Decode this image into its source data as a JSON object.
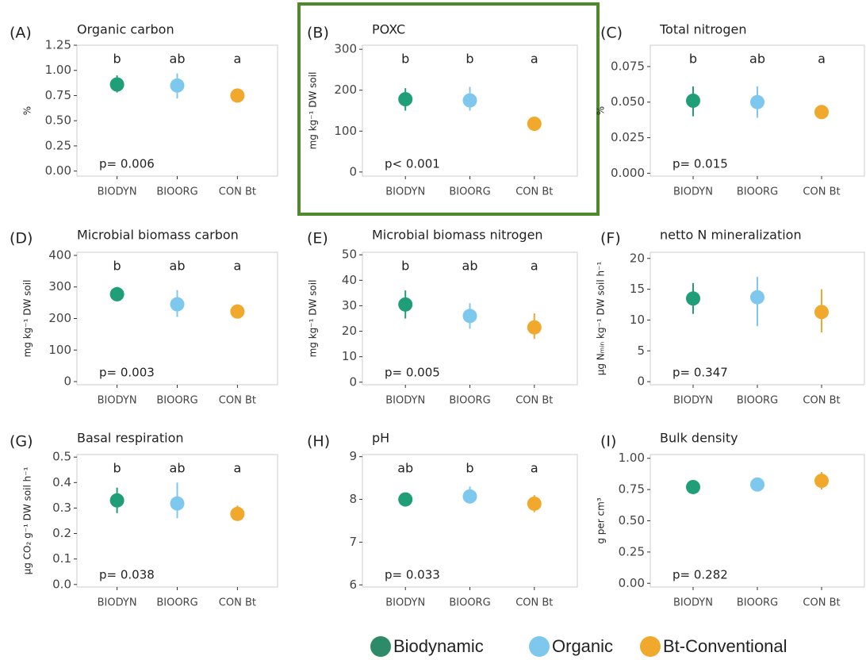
{
  "chart_data": [
    {
      "type": "point",
      "panel": "(A)",
      "title": "Organic carbon",
      "y_label": "%",
      "categories": [
        "BIODYN",
        "BIOORG",
        "CON Bt"
      ],
      "colors": [
        "#1f9e77",
        "#7ec8ee",
        "#f0a92d"
      ],
      "values": [
        0.86,
        0.85,
        0.75
      ],
      "errors": [
        [
          0.78,
          0.95
        ],
        [
          0.72,
          0.97
        ],
        [
          0.71,
          0.79
        ]
      ],
      "letters": [
        "b",
        "ab",
        "a"
      ],
      "p_value": "p= 0.006",
      "ylim": [
        -0.05,
        1.25
      ],
      "yticks": [
        {
          "value": 0,
          "label": "0.00"
        },
        {
          "value": 0.25,
          "label": "0.25"
        },
        {
          "value": 0.5,
          "label": "0.50"
        },
        {
          "value": 0.75,
          "label": "0.75"
        },
        {
          "value": 1,
          "label": "1.00"
        },
        {
          "value": 1.25,
          "label": "1.25"
        }
      ]
    },
    {
      "type": "point",
      "panel": "(B)",
      "title": "POXC",
      "y_label": "mg kg⁻¹ DW soil",
      "highlighted": true,
      "categories": [
        "BIODYN",
        "BIOORG",
        "CON Bt"
      ],
      "colors": [
        "#1f9e77",
        "#7ec8ee",
        "#f0a92d"
      ],
      "values": [
        178,
        175,
        118
      ],
      "errors": [
        [
          150,
          205
        ],
        [
          150,
          208
        ],
        [
          100,
          135
        ]
      ],
      "letters": [
        "b",
        "b",
        "a"
      ],
      "p_value": "p< 0.001",
      "ylim": [
        -10,
        310
      ],
      "yticks": [
        0,
        100,
        200,
        300
      ]
    },
    {
      "type": "point",
      "panel": "(C)",
      "title": "Total nitrogen",
      "y_label": "%",
      "categories": [
        "BIODYN",
        "BIOORG",
        "CON Bt"
      ],
      "colors": [
        "#1f9e77",
        "#7ec8ee",
        "#f0a92d"
      ],
      "values": [
        0.051,
        0.05,
        0.043
      ],
      "errors": [
        [
          0.04,
          0.061
        ],
        [
          0.039,
          0.061
        ],
        [
          0.041,
          0.045
        ]
      ],
      "letters": [
        "b",
        "ab",
        "a"
      ],
      "p_value": "p= 0.015",
      "ylim": [
        -0.002,
        0.09
      ],
      "yticks": [
        {
          "value": 0,
          "label": "0.000"
        },
        {
          "value": 0.025,
          "label": "0.025"
        },
        {
          "value": 0.05,
          "label": "0.050"
        },
        {
          "value": 0.075,
          "label": "0.075"
        }
      ]
    },
    {
      "type": "point",
      "panel": "(D)",
      "title": "Microbial biomass carbon",
      "y_label": "mg kg⁻¹ DW soil",
      "categories": [
        "BIODYN",
        "BIOORG",
        "CON Bt"
      ],
      "colors": [
        "#1f9e77",
        "#7ec8ee",
        "#f0a92d"
      ],
      "values": [
        277,
        245,
        222
      ],
      "errors": [
        [
          255,
          300
        ],
        [
          205,
          290
        ],
        [
          200,
          245
        ]
      ],
      "letters": [
        "b",
        "ab",
        "a"
      ],
      "p_value": "p= 0.003",
      "ylim": [
        -10,
        410
      ],
      "yticks": [
        0,
        100,
        200,
        300,
        400
      ]
    },
    {
      "type": "point",
      "panel": "(E)",
      "title": "Microbial biomass nitrogen",
      "y_label": "mg kg⁻¹ DW soil",
      "categories": [
        "BIODYN",
        "BIOORG",
        "CON Bt"
      ],
      "colors": [
        "#1f9e77",
        "#7ec8ee",
        "#f0a92d"
      ],
      "values": [
        30.5,
        26,
        21.5
      ],
      "errors": [
        [
          25,
          36
        ],
        [
          21,
          31
        ],
        [
          17,
          27
        ]
      ],
      "letters": [
        "b",
        "ab",
        "a"
      ],
      "p_value": "p= 0.005",
      "ylim": [
        -1,
        51
      ],
      "yticks": [
        0,
        10,
        20,
        30,
        40,
        50
      ]
    },
    {
      "type": "point",
      "panel": "(F)",
      "title": "netto N mineralization",
      "y_label": "µg Nₘᵢₙ kg⁻¹ DW soil h⁻¹",
      "categories": [
        "BIODYN",
        "BIOORG",
        "CON Bt"
      ],
      "colors": [
        "#1f9e77",
        "#7ec8ee",
        "#f0a92d"
      ],
      "values": [
        13.5,
        13.7,
        11.3
      ],
      "errors": [
        [
          11,
          16
        ],
        [
          9,
          17
        ],
        [
          8,
          15
        ]
      ],
      "p_value": "p= 0.347",
      "ylim": [
        -0.5,
        21
      ],
      "yticks": [
        0,
        5,
        10,
        15,
        20
      ]
    },
    {
      "type": "point",
      "panel": "(G)",
      "title": "Basal respiration",
      "y_label": "µg CO₂ g⁻¹ DW soil h⁻¹",
      "categories": [
        "BIODYN",
        "BIOORG",
        "CON Bt"
      ],
      "colors": [
        "#1f9e77",
        "#7ec8ee",
        "#f0a92d"
      ],
      "values": [
        0.33,
        0.318,
        0.277
      ],
      "errors": [
        [
          0.28,
          0.38
        ],
        [
          0.26,
          0.4
        ],
        [
          0.25,
          0.31
        ]
      ],
      "letters": [
        "b",
        "ab",
        "a"
      ],
      "p_value": "p= 0.038",
      "ylim": [
        -0.01,
        0.51
      ],
      "yticks": [
        {
          "value": 0,
          "label": "0.0"
        },
        0.1,
        0.2,
        0.3,
        0.4,
        0.5
      ]
    },
    {
      "type": "point",
      "panel": "(H)",
      "title": "pH",
      "y_label": "",
      "categories": [
        "BIODYN",
        "BIOORG",
        "CON Bt"
      ],
      "colors": [
        "#1f9e77",
        "#7ec8ee",
        "#f0a92d"
      ],
      "values": [
        8.0,
        8.07,
        7.9
      ],
      "errors": [
        [
          7.85,
          8.15
        ],
        [
          7.9,
          8.3
        ],
        [
          7.7,
          8.1
        ]
      ],
      "letters": [
        "ab",
        "b",
        "a"
      ],
      "p_value": "p= 0.033",
      "ylim": [
        5.95,
        9.05
      ],
      "yticks": [
        6,
        7,
        8,
        9
      ]
    },
    {
      "type": "point",
      "panel": "(I)",
      "title": "Bulk density",
      "y_label": "g per cm³",
      "categories": [
        "BIODYN",
        "BIOORG",
        "CON Bt"
      ],
      "colors": [
        "#1f9e77",
        "#7ec8ee",
        "#f0a92d"
      ],
      "values": [
        0.77,
        0.79,
        0.82
      ],
      "errors": [
        [
          0.72,
          0.82
        ],
        [
          0.75,
          0.83
        ],
        [
          0.75,
          0.89
        ]
      ],
      "p_value": "p= 0.282",
      "ylim": [
        -0.03,
        1.03
      ],
      "yticks": [
        {
          "value": 0,
          "label": "0.00"
        },
        {
          "value": 0.25,
          "label": "0.25"
        },
        {
          "value": 0.5,
          "label": "0.50"
        },
        {
          "value": 0.75,
          "label": "0.75"
        },
        {
          "value": 1,
          "label": "1.00"
        }
      ]
    }
  ],
  "legend": [
    {
      "name": "Biodynamic",
      "color": "#2e8b6a"
    },
    {
      "name": "Organic",
      "color": "#7ec8ee"
    },
    {
      "name": "Bt-Conventional",
      "color": "#f0a92d"
    }
  ]
}
